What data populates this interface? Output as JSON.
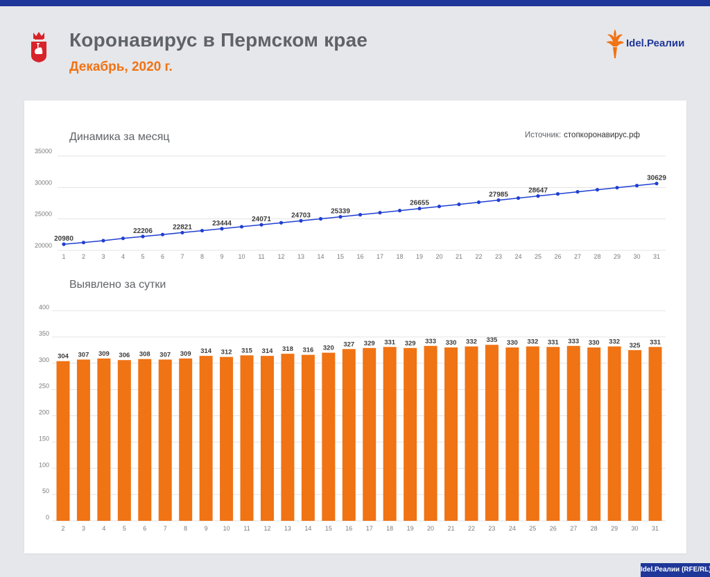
{
  "header": {
    "title": "Коронавирус в Пермском крае",
    "subtitle": "Декабрь, 2020 г.",
    "brand": "Idel.Реалии",
    "crest_icon": "perm-krai-crest-icon",
    "brand_icon": "torch-flame-icon"
  },
  "source": {
    "label": "Источник:",
    "value": "стопкоронавирус.рф"
  },
  "footer": {
    "credit": "Idel.Реалии (RFE/RL)"
  },
  "colors": {
    "accent": "#f07314",
    "brand_blue": "#1e3799",
    "line": "#1f3fd1",
    "title_gray": "#5f6368"
  },
  "chart_data": [
    {
      "type": "line",
      "title": "Динамика за месяц",
      "x": [
        1,
        2,
        3,
        4,
        5,
        6,
        7,
        8,
        9,
        10,
        11,
        12,
        13,
        14,
        15,
        16,
        17,
        18,
        19,
        20,
        21,
        22,
        23,
        24,
        25,
        26,
        27,
        28,
        29,
        30,
        31
      ],
      "values": [
        20980,
        21245,
        21545,
        21910,
        22206,
        22514,
        22821,
        23134,
        23444,
        23759,
        24071,
        24388,
        24703,
        25017,
        25339,
        25665,
        25994,
        26325,
        26655,
        26987,
        27318,
        27650,
        27985,
        28315,
        28647,
        28977,
        29309,
        29640,
        29972,
        30297,
        30629
      ],
      "data_labels": [
        {
          "x": 1,
          "text": "20980"
        },
        {
          "x": 5,
          "text": "22206"
        },
        {
          "x": 7,
          "text": "22821"
        },
        {
          "x": 9,
          "text": "23444"
        },
        {
          "x": 11,
          "text": "24071"
        },
        {
          "x": 13,
          "text": "24703"
        },
        {
          "x": 15,
          "text": "25339"
        },
        {
          "x": 19,
          "text": "26655"
        },
        {
          "x": 23,
          "text": "27985"
        },
        {
          "x": 25,
          "text": "28647"
        },
        {
          "x": 31,
          "text": "30629"
        }
      ],
      "yticks": [
        20000,
        25000,
        30000,
        35000
      ],
      "ylim": [
        20000,
        35000
      ],
      "grid": true
    },
    {
      "type": "bar",
      "title": "Выявлено за сутки",
      "categories": [
        "2",
        "3",
        "4",
        "5",
        "6",
        "7",
        "8",
        "9",
        "10",
        "11",
        "12",
        "13",
        "14",
        "15",
        "16",
        "17",
        "18",
        "19",
        "20",
        "21",
        "22",
        "23",
        "24",
        "25",
        "26",
        "27",
        "28",
        "29",
        "30",
        "31"
      ],
      "values": [
        304,
        307,
        309,
        306,
        308,
        307,
        309,
        314,
        312,
        315,
        314,
        318,
        316,
        320,
        327,
        329,
        331,
        329,
        333,
        330,
        332,
        335,
        330,
        332,
        331,
        333,
        330,
        332,
        325,
        331
      ],
      "yticks": [
        0,
        50,
        100,
        150,
        200,
        250,
        300,
        350,
        400
      ],
      "ylim": [
        0,
        400
      ],
      "grid": true
    }
  ]
}
